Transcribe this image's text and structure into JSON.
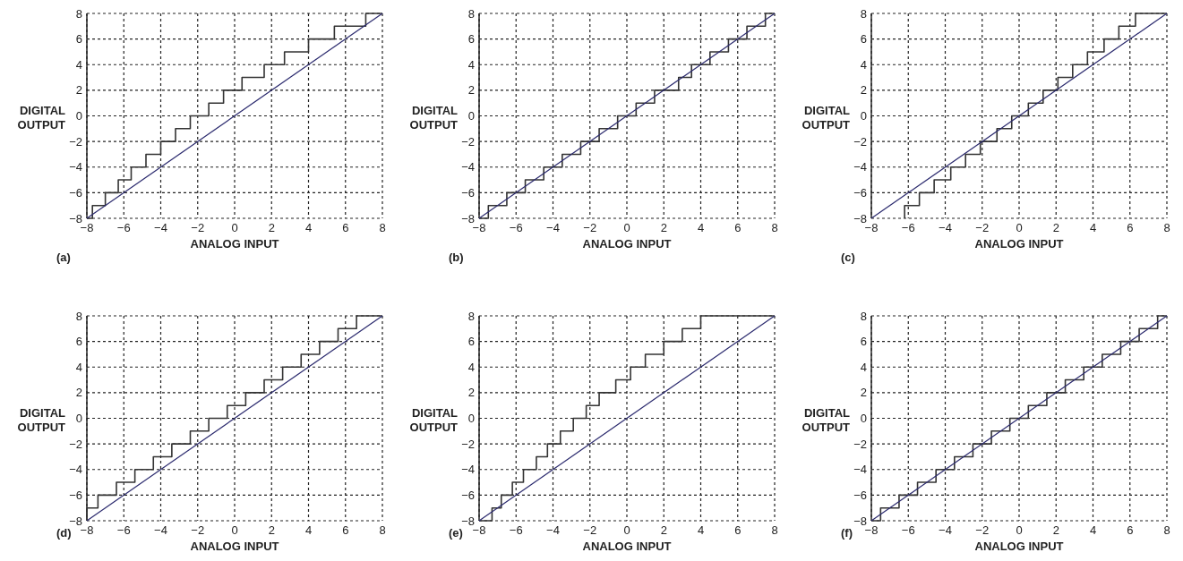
{
  "chart_data": [
    {
      "type": "step",
      "xlabel": "ANALOG INPUT",
      "ylabel": "DIGITAL OUTPUT",
      "annotations": [
        "(a)"
      ],
      "xlim": [
        -8,
        8
      ],
      "ylim": [
        -8,
        8
      ],
      "xticks": [
        -8,
        -6,
        -4,
        -2,
        0,
        2,
        4,
        6,
        8
      ],
      "yticks": [
        -8,
        -6,
        -4,
        -2,
        0,
        2,
        4,
        6,
        8
      ],
      "grid": true,
      "series": [
        {
          "type": "step",
          "color": "#333333",
          "x": [
            -8,
            -7.7,
            -7.0,
            -6.3,
            -5.6,
            -4.8,
            -4.0,
            -3.2,
            -2.4,
            -1.4,
            -0.6,
            0.4,
            1.6,
            2.7,
            4.0,
            5.4,
            7.1,
            8
          ],
          "values": [
            -8,
            -7,
            -6,
            -5,
            -4,
            -3,
            -2,
            -1,
            0,
            1,
            2,
            3,
            4,
            5,
            6,
            7,
            8,
            8
          ]
        },
        {
          "type": "line",
          "color": "#2b2a6e",
          "x": [
            -8,
            8
          ],
          "values": [
            -8,
            8
          ]
        }
      ]
    },
    {
      "type": "step",
      "xlabel": "ANALOG INPUT",
      "ylabel": "DIGITAL OUTPUT",
      "annotations": [
        "(b)"
      ],
      "xlim": [
        -8,
        8
      ],
      "ylim": [
        -8,
        8
      ],
      "xticks": [
        -8,
        -6,
        -4,
        -2,
        0,
        2,
        4,
        6,
        8
      ],
      "yticks": [
        -8,
        -6,
        -4,
        -2,
        0,
        2,
        4,
        6,
        8
      ],
      "grid": true,
      "series": [
        {
          "type": "step",
          "color": "#333333",
          "x": [
            -8,
            -7.5,
            -6.5,
            -5.5,
            -4.5,
            -3.5,
            -2.5,
            -1.5,
            -0.5,
            0.5,
            1.5,
            2.8,
            3.5,
            4.5,
            5.5,
            6.5,
            7.5,
            8
          ],
          "values": [
            -8,
            -7,
            -6,
            -5,
            -4,
            -3,
            -2,
            -1,
            0,
            1,
            2,
            3,
            4,
            5,
            6,
            7,
            8,
            8
          ]
        },
        {
          "type": "line",
          "color": "#2b2a6e",
          "x": [
            -8,
            8
          ],
          "values": [
            -8,
            8
          ]
        }
      ]
    },
    {
      "type": "step",
      "xlabel": "ANALOG INPUT",
      "ylabel": "DIGITAL OUTPUT",
      "annotations": [
        "(c)"
      ],
      "xlim": [
        -8,
        8
      ],
      "ylim": [
        -8,
        8
      ],
      "xticks": [
        -8,
        -6,
        -4,
        -2,
        0,
        2,
        4,
        6,
        8
      ],
      "yticks": [
        -8,
        -6,
        -4,
        -2,
        0,
        2,
        4,
        6,
        8
      ],
      "grid": true,
      "series": [
        {
          "type": "step",
          "color": "#333333",
          "x": [
            -6.2,
            -6.2,
            -5.4,
            -4.6,
            -3.7,
            -2.9,
            -2.1,
            -1.2,
            -0.4,
            0.5,
            1.3,
            2.1,
            2.9,
            3.7,
            4.6,
            5.4,
            6.3,
            8
          ],
          "values": [
            -8,
            -7,
            -6,
            -5,
            -4,
            -3,
            -2,
            -1,
            0,
            1,
            2,
            3,
            4,
            5,
            6,
            7,
            8,
            8
          ]
        },
        {
          "type": "line",
          "color": "#2b2a6e",
          "x": [
            -8,
            8
          ],
          "values": [
            -8,
            8
          ]
        }
      ]
    },
    {
      "type": "step",
      "xlabel": "ANALOG INPUT",
      "ylabel": "DIGITAL OUTPUT",
      "annotations": [
        "(d)"
      ],
      "xlim": [
        -8,
        8
      ],
      "ylim": [
        -8,
        8
      ],
      "xticks": [
        -8,
        -6,
        -4,
        -2,
        0,
        2,
        4,
        6,
        8
      ],
      "yticks": [
        -8,
        -6,
        -4,
        -2,
        0,
        2,
        4,
        6,
        8
      ],
      "grid": true,
      "series": [
        {
          "type": "step",
          "color": "#333333",
          "x": [
            -8,
            -8,
            -7.4,
            -6.4,
            -5.4,
            -4.4,
            -3.4,
            -2.4,
            -1.4,
            -0.4,
            0.6,
            1.6,
            2.6,
            3.6,
            4.6,
            5.6,
            6.6,
            8
          ],
          "values": [
            -8,
            -7,
            -6,
            -5,
            -4,
            -3,
            -2,
            -1,
            0,
            1,
            2,
            3,
            4,
            5,
            6,
            7,
            8,
            8
          ]
        },
        {
          "type": "line",
          "color": "#2b2a6e",
          "x": [
            -8,
            8
          ],
          "values": [
            -8,
            8
          ]
        }
      ]
    },
    {
      "type": "step",
      "xlabel": "ANALOG INPUT",
      "ylabel": "DIGITAL OUTPUT",
      "annotations": [
        "(e)"
      ],
      "xlim": [
        -8,
        8
      ],
      "ylim": [
        -8,
        8
      ],
      "xticks": [
        -8,
        -6,
        -4,
        -2,
        0,
        2,
        4,
        6,
        8
      ],
      "yticks": [
        -8,
        -6,
        -4,
        -2,
        0,
        2,
        4,
        6,
        8
      ],
      "grid": true,
      "series": [
        {
          "type": "step",
          "color": "#333333",
          "x": [
            -8,
            -7.3,
            -6.8,
            -6.2,
            -5.6,
            -4.9,
            -4.3,
            -3.6,
            -2.9,
            -2.2,
            -1.5,
            -0.6,
            0.2,
            1.0,
            2.0,
            3.0,
            4.0,
            8
          ],
          "values": [
            -8,
            -7,
            -6,
            -5,
            -4,
            -3,
            -2,
            -1,
            0,
            1,
            2,
            3,
            4,
            5,
            6,
            7,
            8,
            8
          ]
        },
        {
          "type": "line",
          "color": "#2b2a6e",
          "x": [
            -8,
            8
          ],
          "values": [
            -8,
            8
          ]
        }
      ]
    },
    {
      "type": "step",
      "xlabel": "ANALOG INPUT",
      "ylabel": "DIGITAL OUTPUT",
      "annotations": [
        "(f)"
      ],
      "xlim": [
        -8,
        8
      ],
      "ylim": [
        -8,
        8
      ],
      "xticks": [
        -8,
        -6,
        -4,
        -2,
        0,
        2,
        4,
        6,
        8
      ],
      "yticks": [
        -8,
        -6,
        -4,
        -2,
        0,
        2,
        4,
        6,
        8
      ],
      "grid": true,
      "series": [
        {
          "type": "step",
          "color": "#333333",
          "x": [
            -8,
            -7.5,
            -6.5,
            -5.5,
            -4.5,
            -3.5,
            -2.5,
            -1.5,
            -0.5,
            0.5,
            1.5,
            2.5,
            3.5,
            4.5,
            5.5,
            6.5,
            7.5,
            8
          ],
          "values": [
            -8,
            -7,
            -6,
            -5,
            -4,
            -3,
            -2,
            -1,
            0,
            1,
            2,
            3,
            4,
            5,
            6,
            7,
            8,
            8
          ]
        },
        {
          "type": "line",
          "color": "#2b2a6e",
          "x": [
            -8,
            8
          ],
          "values": [
            -8,
            8
          ]
        }
      ]
    }
  ]
}
